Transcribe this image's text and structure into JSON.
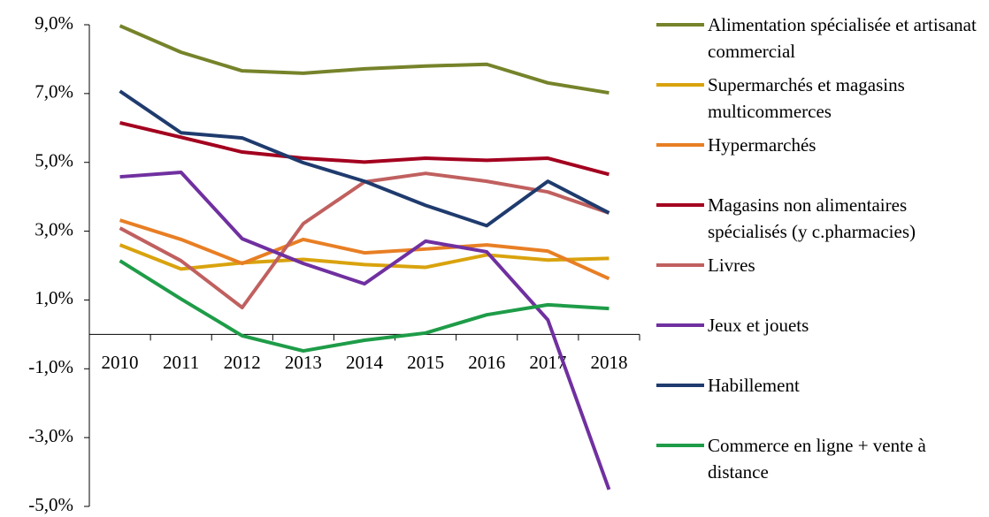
{
  "chart_data": {
    "type": "line",
    "categories": [
      "2010",
      "2011",
      "2012",
      "2013",
      "2014",
      "2015",
      "2016",
      "2017",
      "2018"
    ],
    "ylim": [
      -5,
      9
    ],
    "yticks": [
      {
        "value": -5,
        "label": "-5,0%"
      },
      {
        "value": -3,
        "label": "-3,0%"
      },
      {
        "value": -1,
        "label": "-1,0%"
      },
      {
        "value": 1,
        "label": "1,0%"
      },
      {
        "value": 3,
        "label": "3,0%"
      },
      {
        "value": 5,
        "label": "5,0%"
      },
      {
        "value": 7,
        "label": "7,0%"
      },
      {
        "value": 9,
        "label": "9,0%"
      }
    ],
    "grid": false,
    "legend": "right",
    "series": [
      {
        "name": "Alimentation spécialisée et artisanat commercial",
        "color": "#76832a",
        "values": [
          8.97,
          8.2,
          7.66,
          7.59,
          7.72,
          7.8,
          7.85,
          7.31,
          7.02
        ]
      },
      {
        "name": "Supermarchés et magasins multicommerces",
        "color": "#d9a30e",
        "values": [
          2.6,
          1.9,
          2.08,
          2.18,
          2.03,
          1.95,
          2.31,
          2.16,
          2.21
        ]
      },
      {
        "name": "Hypermarchés",
        "color": "#e87f24",
        "values": [
          3.32,
          2.76,
          2.06,
          2.76,
          2.37,
          2.48,
          2.6,
          2.42,
          1.62
        ]
      },
      {
        "name": "Magasins non alimentaires spécialisés (y c.pharmacies)",
        "color": "#a3001f",
        "values": [
          6.15,
          5.73,
          5.3,
          5.12,
          5.01,
          5.12,
          5.06,
          5.12,
          4.65
        ]
      },
      {
        "name": "Livres",
        "color": "#c0605f",
        "values": [
          3.09,
          2.14,
          0.78,
          3.22,
          4.43,
          4.68,
          4.45,
          4.14,
          3.53
        ]
      },
      {
        "name": "Jeux et jouets",
        "color": "#7030a0",
        "values": [
          4.58,
          4.71,
          2.78,
          2.06,
          1.47,
          2.71,
          2.4,
          0.42,
          -4.51
        ]
      },
      {
        "name": "Habillement",
        "color": "#1f3b6e",
        "values": [
          7.07,
          5.86,
          5.71,
          4.99,
          4.45,
          3.75,
          3.16,
          4.45,
          3.53
        ]
      },
      {
        "name": "Commerce en ligne + vente à distance",
        "color": "#1e9c48",
        "values": [
          2.14,
          1.03,
          -0.04,
          -0.48,
          -0.17,
          0.04,
          0.57,
          0.86,
          0.75
        ]
      }
    ]
  }
}
